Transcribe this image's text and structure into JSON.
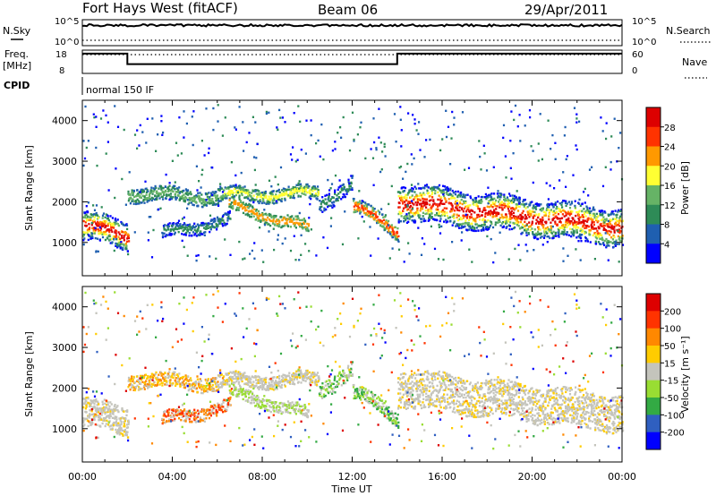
{
  "header": {
    "station": "Fort Hays West (fitACF)",
    "beam": "Beam 06",
    "date": "29/Apr/2011"
  },
  "strip_labels": {
    "nsky": "N.Sky",
    "nsearch": "N.Search",
    "freq": "Freq.",
    "freq_unit": "[MHz]",
    "nave": "Nave",
    "cpid": "CPID",
    "cpid_value": "normal 150 IF",
    "nsky_ticks": [
      "10^5",
      "10^0"
    ],
    "nsearch_ticks": [
      "10^5",
      "10^0"
    ],
    "freq_ticks": [
      "18",
      "8"
    ],
    "nave_ticks": [
      "60",
      "0"
    ]
  },
  "axes": {
    "ylabel": "Slant Range [km]",
    "xlabel": "Time UT",
    "x_ticks": [
      "00:00",
      "04:00",
      "08:00",
      "12:00",
      "16:00",
      "20:00",
      "00:00"
    ],
    "y_ticks": [
      "1000",
      "2000",
      "3000",
      "4000"
    ]
  },
  "chart_data": [
    {
      "type": "line",
      "name": "frequency-strip",
      "x_hours": [
        0.0,
        2.0,
        2.0,
        14.0,
        14.0,
        24.0
      ],
      "freq_mhz": [
        16.5,
        16.5,
        12.0,
        12.0,
        16.5,
        16.5
      ],
      "ylim": [
        8,
        18
      ],
      "xlim_hours": [
        0,
        24
      ]
    },
    {
      "type": "heatmap",
      "name": "power-panel",
      "ylabel": "Slant Range [km]",
      "xlim_hours": [
        0,
        24
      ],
      "ylim_km": [
        180,
        4500
      ],
      "colorbar": {
        "label": "Power [dB]",
        "ticks": [
          "4",
          "8",
          "12",
          "16",
          "20",
          "24",
          "28"
        ],
        "range": [
          0,
          30
        ],
        "colors": [
          "#0000ff",
          "#1f5fb0",
          "#2e8b57",
          "#66b366",
          "#ffff33",
          "#ff9900",
          "#ff3300",
          "#dd0000"
        ]
      }
    },
    {
      "type": "heatmap",
      "name": "velocity-panel",
      "ylabel": "Slant Range [km]",
      "xlabel": "Time UT",
      "xlim_hours": [
        0,
        24
      ],
      "ylim_km": [
        180,
        4500
      ],
      "colorbar": {
        "label": "Velocity [m s⁻¹]",
        "ticks": [
          "200",
          "100",
          "50",
          "15",
          "-15",
          "-50",
          "-100",
          "-200"
        ],
        "range": [
          -250,
          250
        ],
        "colors": [
          "#0000ff",
          "#2f5fc0",
          "#33aa44",
          "#99dd33",
          "#c4c4bc",
          "#ffcc00",
          "#ff8800",
          "#ff3300",
          "#dd0000"
        ]
      }
    }
  ]
}
